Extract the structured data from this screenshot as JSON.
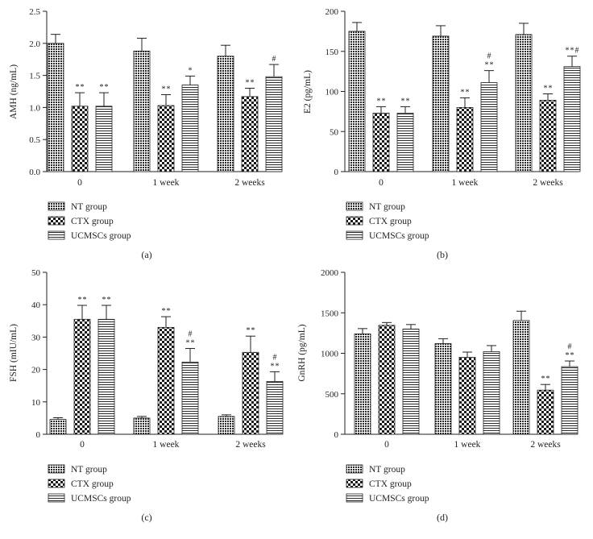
{
  "legend": {
    "items": [
      {
        "key": "NT",
        "label": "NT group",
        "pattern": "hatch-dense"
      },
      {
        "key": "CTX",
        "label": "CTX group",
        "pattern": "checker"
      },
      {
        "key": "UC",
        "label": "UCMSCs group",
        "pattern": "stripes"
      }
    ]
  },
  "chart_data": [
    {
      "id": "a",
      "type": "bar",
      "panel_label": "(a)",
      "ylabel": "AMH (ng/mL)",
      "categories": [
        "0",
        "1 week",
        "2 weeks"
      ],
      "ylim": [
        0,
        2.5
      ],
      "yticks": [
        0.0,
        0.5,
        1.0,
        1.5,
        2.0,
        2.5
      ],
      "tick_format": "0.0",
      "series": [
        {
          "name": "NT group",
          "values": [
            2.0,
            1.88,
            1.8
          ],
          "errors": [
            0.14,
            0.2,
            0.17
          ],
          "annotations": [
            [],
            [],
            []
          ]
        },
        {
          "name": "CTX group",
          "values": [
            1.02,
            1.03,
            1.17
          ],
          "errors": [
            0.21,
            0.17,
            0.13
          ],
          "annotations": [
            [
              "**"
            ],
            [
              "**"
            ],
            [
              "**"
            ]
          ]
        },
        {
          "name": "UCMSCs group",
          "values": [
            1.02,
            1.35,
            1.48
          ],
          "errors": [
            0.21,
            0.14,
            0.19
          ],
          "annotations": [
            [
              "**"
            ],
            [
              "*"
            ],
            [
              "#"
            ]
          ]
        }
      ]
    },
    {
      "id": "b",
      "type": "bar",
      "panel_label": "(b)",
      "ylabel": "E2 (pg/mL)",
      "categories": [
        "0",
        "1 week",
        "2 weeks"
      ],
      "ylim": [
        0,
        200
      ],
      "yticks": [
        0,
        50,
        100,
        150,
        200
      ],
      "tick_format": "0",
      "series": [
        {
          "name": "NT group",
          "values": [
            175,
            169,
            171
          ],
          "errors": [
            11,
            13,
            14
          ],
          "annotations": [
            [],
            [],
            []
          ]
        },
        {
          "name": "CTX group",
          "values": [
            73,
            80,
            89
          ],
          "errors": [
            8,
            12,
            8
          ],
          "annotations": [
            [
              "**"
            ],
            [
              "**"
            ],
            [
              "**"
            ]
          ]
        },
        {
          "name": "UCMSCs group",
          "values": [
            73,
            111,
            131
          ],
          "errors": [
            8,
            15,
            13
          ],
          "annotations": [
            [
              "**"
            ],
            [
              "**",
              "#"
            ],
            [
              "**#"
            ]
          ]
        }
      ]
    },
    {
      "id": "c",
      "type": "bar",
      "panel_label": "(c)",
      "ylabel": "FSH (mIU/mL)",
      "categories": [
        "0",
        "1 week",
        "2 weeks"
      ],
      "ylim": [
        0,
        50
      ],
      "yticks": [
        0,
        10,
        20,
        30,
        40,
        50
      ],
      "tick_format": "0",
      "series": [
        {
          "name": "NT group",
          "values": [
            4.6,
            5.0,
            5.5
          ],
          "errors": [
            0.5,
            0.5,
            0.5
          ],
          "annotations": [
            [],
            [],
            []
          ]
        },
        {
          "name": "CTX group",
          "values": [
            35.5,
            33.0,
            25.3
          ],
          "errors": [
            4.3,
            3.3,
            5.0
          ],
          "annotations": [
            [
              "**"
            ],
            [
              "**"
            ],
            [
              "**"
            ]
          ]
        },
        {
          "name": "UCMSCs group",
          "values": [
            35.5,
            22.3,
            16.3
          ],
          "errors": [
            4.3,
            4.2,
            3.0
          ],
          "annotations": [
            [
              "**"
            ],
            [
              "**",
              "#"
            ],
            [
              "**",
              "#"
            ]
          ]
        }
      ]
    },
    {
      "id": "d",
      "type": "bar",
      "panel_label": "(d)",
      "ylabel": "GnRH (pg/mL)",
      "categories": [
        "0",
        "1 week",
        "2 weeks"
      ],
      "ylim": [
        0,
        2000
      ],
      "yticks": [
        0,
        500,
        1000,
        1500,
        2000
      ],
      "tick_format": "0",
      "series": [
        {
          "name": "NT group",
          "values": [
            1240,
            1120,
            1405
          ],
          "errors": [
            65,
            60,
            115
          ],
          "annotations": [
            [],
            [],
            []
          ]
        },
        {
          "name": "CTX group",
          "values": [
            1345,
            950,
            545
          ],
          "errors": [
            35,
            65,
            70
          ],
          "annotations": [
            [],
            [],
            [
              "**"
            ]
          ]
        },
        {
          "name": "UCMSCs group",
          "values": [
            1300,
            1020,
            835
          ],
          "errors": [
            55,
            75,
            70
          ],
          "annotations": [
            [],
            [],
            [
              "**",
              "#"
            ]
          ]
        }
      ]
    }
  ]
}
